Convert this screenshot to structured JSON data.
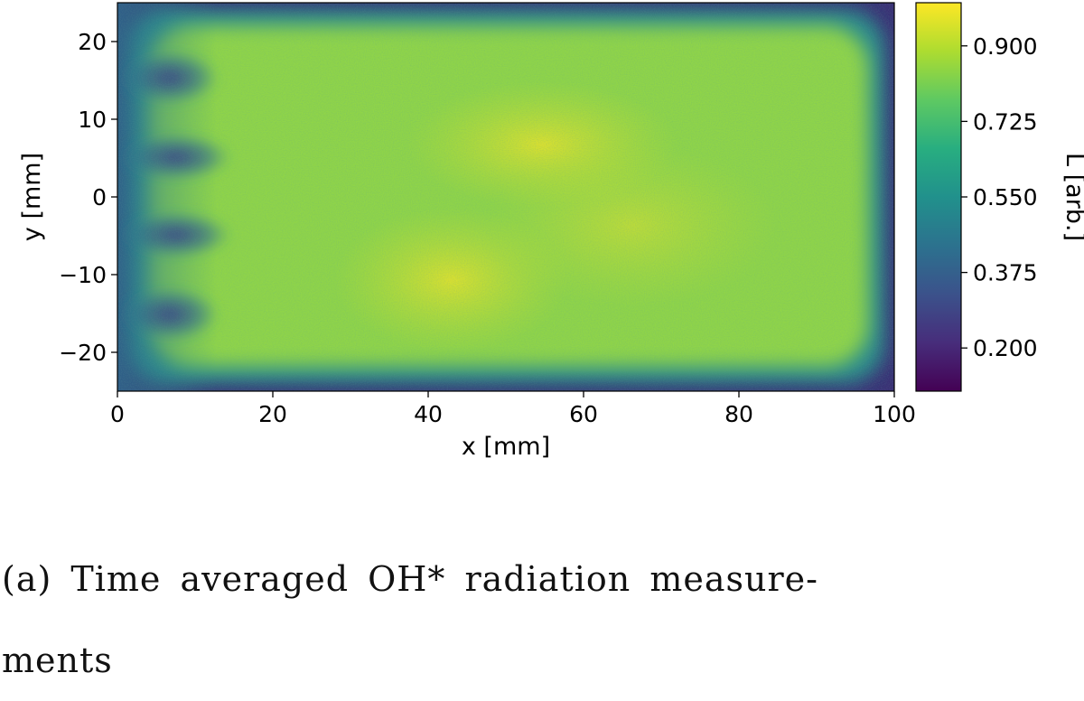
{
  "chart_data": {
    "type": "heatmap",
    "title": "",
    "xlabel": "x [mm]",
    "ylabel": "y [mm]",
    "xlim": [
      0,
      100
    ],
    "ylim": [
      -25,
      25
    ],
    "x_ticks": [
      "0",
      "20",
      "40",
      "60",
      "80",
      "100"
    ],
    "y_ticks": [
      "20",
      "10",
      "0",
      "−10",
      "−20"
    ],
    "colorbar": {
      "label": "L [arb.]",
      "colormap": "viridis",
      "range": [
        0.1,
        1.0
      ],
      "ticks": [
        "0.900",
        "0.725",
        "0.550",
        "0.375",
        "0.200"
      ]
    },
    "features": {
      "frame_value": 0.3,
      "plateau_value": 0.72,
      "peak_value": 0.92,
      "dark_inlets_y_mm": [
        17,
        5,
        -5,
        -15
      ]
    }
  },
  "caption": {
    "line1": "(a) Time averaged OH* radiation measure-",
    "line2": "ments"
  }
}
